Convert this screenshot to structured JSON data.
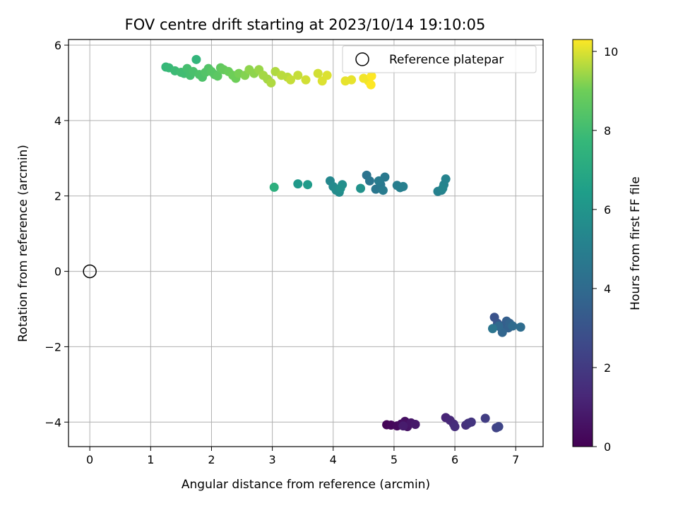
{
  "chart_data": {
    "type": "scatter",
    "title": "FOV centre drift starting at 2023/10/14 19:10:05",
    "xlabel": "Angular distance from reference (arcmin)",
    "ylabel": "Rotation from reference (arcmin)",
    "xlim": [
      -0.35,
      7.45
    ],
    "ylim": [
      -4.65,
      6.15
    ],
    "xticks": [
      0,
      1,
      2,
      3,
      4,
      5,
      6,
      7
    ],
    "yticks": [
      -4,
      -2,
      0,
      2,
      4,
      6
    ],
    "ytick_labels": [
      "−4",
      "−2",
      "0",
      "2",
      "4",
      "6"
    ],
    "grid": true,
    "colormap": "viridis",
    "colorbar": {
      "label": "Hours from first FF file",
      "range": [
        0,
        10.3
      ],
      "ticks": [
        0,
        2,
        4,
        6,
        8,
        10
      ]
    },
    "legend": {
      "position": "top-right",
      "entries": [
        {
          "label": "Reference platepar",
          "marker": "open-circle"
        }
      ]
    },
    "reference_point": {
      "x": 0,
      "y": 0
    },
    "points": [
      {
        "x": 4.88,
        "y": -4.07,
        "c": 0.1
      },
      {
        "x": 4.95,
        "y": -4.08,
        "c": 0.2
      },
      {
        "x": 5.05,
        "y": -4.1,
        "c": 0.3
      },
      {
        "x": 5.12,
        "y": -4.05,
        "c": 0.4
      },
      {
        "x": 5.18,
        "y": -3.98,
        "c": 0.5
      },
      {
        "x": 5.22,
        "y": -4.12,
        "c": 0.6
      },
      {
        "x": 5.28,
        "y": -4.02,
        "c": 0.7
      },
      {
        "x": 5.35,
        "y": -4.06,
        "c": 0.8
      },
      {
        "x": 5.15,
        "y": -4.1,
        "c": 0.9
      },
      {
        "x": 5.85,
        "y": -3.88,
        "c": 1.2
      },
      {
        "x": 5.92,
        "y": -3.95,
        "c": 1.3
      },
      {
        "x": 5.98,
        "y": -4.05,
        "c": 1.4
      },
      {
        "x": 6.0,
        "y": -4.12,
        "c": 1.5
      },
      {
        "x": 6.18,
        "y": -4.08,
        "c": 1.6
      },
      {
        "x": 6.22,
        "y": -4.03,
        "c": 1.7
      },
      {
        "x": 6.27,
        "y": -4.0,
        "c": 1.8
      },
      {
        "x": 6.5,
        "y": -3.9,
        "c": 2.1
      },
      {
        "x": 6.68,
        "y": -4.15,
        "c": 2.3
      },
      {
        "x": 6.72,
        "y": -4.12,
        "c": 2.4
      },
      {
        "x": 6.65,
        "y": -1.22,
        "c": 3.0
      },
      {
        "x": 6.7,
        "y": -1.38,
        "c": 3.1
      },
      {
        "x": 6.75,
        "y": -1.48,
        "c": 3.2
      },
      {
        "x": 6.78,
        "y": -1.55,
        "c": 3.3
      },
      {
        "x": 6.82,
        "y": -1.42,
        "c": 3.4
      },
      {
        "x": 6.85,
        "y": -1.32,
        "c": 3.5
      },
      {
        "x": 6.88,
        "y": -1.5,
        "c": 3.6
      },
      {
        "x": 6.9,
        "y": -1.38,
        "c": 3.7
      },
      {
        "x": 6.78,
        "y": -1.62,
        "c": 3.8
      },
      {
        "x": 6.72,
        "y": -1.45,
        "c": 3.9
      },
      {
        "x": 6.95,
        "y": -1.45,
        "c": 4.0
      },
      {
        "x": 7.08,
        "y": -1.48,
        "c": 4.1
      },
      {
        "x": 6.62,
        "y": -1.52,
        "c": 4.5
      },
      {
        "x": 4.55,
        "y": 2.55,
        "c": 4.4
      },
      {
        "x": 4.6,
        "y": 2.4,
        "c": 4.5
      },
      {
        "x": 4.7,
        "y": 2.18,
        "c": 4.6
      },
      {
        "x": 4.78,
        "y": 2.3,
        "c": 4.6
      },
      {
        "x": 4.85,
        "y": 2.5,
        "c": 4.7
      },
      {
        "x": 4.82,
        "y": 2.15,
        "c": 4.8
      },
      {
        "x": 4.75,
        "y": 2.4,
        "c": 4.8
      },
      {
        "x": 5.05,
        "y": 2.28,
        "c": 4.9
      },
      {
        "x": 5.1,
        "y": 2.22,
        "c": 5.0
      },
      {
        "x": 5.15,
        "y": 2.25,
        "c": 5.0
      },
      {
        "x": 5.72,
        "y": 2.12,
        "c": 5.1
      },
      {
        "x": 5.78,
        "y": 2.15,
        "c": 5.1
      },
      {
        "x": 5.82,
        "y": 2.3,
        "c": 5.2
      },
      {
        "x": 5.85,
        "y": 2.45,
        "c": 5.2
      },
      {
        "x": 5.8,
        "y": 2.2,
        "c": 5.3
      },
      {
        "x": 3.95,
        "y": 2.4,
        "c": 5.4
      },
      {
        "x": 4.0,
        "y": 2.25,
        "c": 5.5
      },
      {
        "x": 4.05,
        "y": 2.15,
        "c": 5.6
      },
      {
        "x": 4.1,
        "y": 2.1,
        "c": 5.6
      },
      {
        "x": 4.15,
        "y": 2.3,
        "c": 5.7
      },
      {
        "x": 4.12,
        "y": 2.2,
        "c": 5.8
      },
      {
        "x": 4.45,
        "y": 2.2,
        "c": 5.9
      },
      {
        "x": 3.42,
        "y": 2.32,
        "c": 6.2
      },
      {
        "x": 3.58,
        "y": 2.3,
        "c": 6.3
      },
      {
        "x": 3.03,
        "y": 2.23,
        "c": 7.3
      },
      {
        "x": 1.75,
        "y": 5.62,
        "c": 7.6
      },
      {
        "x": 1.25,
        "y": 5.42,
        "c": 7.7
      },
      {
        "x": 1.3,
        "y": 5.4,
        "c": 7.8
      },
      {
        "x": 1.4,
        "y": 5.32,
        "c": 7.9
      },
      {
        "x": 1.5,
        "y": 5.28,
        "c": 8.0
      },
      {
        "x": 1.55,
        "y": 5.25,
        "c": 8.0
      },
      {
        "x": 1.6,
        "y": 5.38,
        "c": 8.1
      },
      {
        "x": 1.65,
        "y": 5.2,
        "c": 8.1
      },
      {
        "x": 1.7,
        "y": 5.3,
        "c": 8.2
      },
      {
        "x": 1.8,
        "y": 5.22,
        "c": 8.3
      },
      {
        "x": 1.85,
        "y": 5.15,
        "c": 8.3
      },
      {
        "x": 1.9,
        "y": 5.28,
        "c": 8.4
      },
      {
        "x": 1.95,
        "y": 5.38,
        "c": 8.4
      },
      {
        "x": 2.0,
        "y": 5.3,
        "c": 8.5
      },
      {
        "x": 2.05,
        "y": 5.22,
        "c": 8.5
      },
      {
        "x": 2.1,
        "y": 5.18,
        "c": 8.6
      },
      {
        "x": 2.15,
        "y": 5.4,
        "c": 8.7
      },
      {
        "x": 2.2,
        "y": 5.35,
        "c": 8.8
      },
      {
        "x": 2.28,
        "y": 5.3,
        "c": 8.9
      },
      {
        "x": 2.35,
        "y": 5.2,
        "c": 9.0
      },
      {
        "x": 2.4,
        "y": 5.12,
        "c": 9.0
      },
      {
        "x": 2.45,
        "y": 5.25,
        "c": 9.1
      },
      {
        "x": 2.55,
        "y": 5.2,
        "c": 9.2
      },
      {
        "x": 2.62,
        "y": 5.35,
        "c": 9.3
      },
      {
        "x": 2.7,
        "y": 5.25,
        "c": 9.3
      },
      {
        "x": 2.78,
        "y": 5.35,
        "c": 9.4
      },
      {
        "x": 2.85,
        "y": 5.2,
        "c": 9.5
      },
      {
        "x": 2.92,
        "y": 5.1,
        "c": 9.5
      },
      {
        "x": 2.98,
        "y": 5.0,
        "c": 9.6
      },
      {
        "x": 3.05,
        "y": 5.3,
        "c": 9.6
      },
      {
        "x": 3.15,
        "y": 5.2,
        "c": 9.7
      },
      {
        "x": 3.25,
        "y": 5.15,
        "c": 9.7
      },
      {
        "x": 3.3,
        "y": 5.08,
        "c": 9.8
      },
      {
        "x": 3.42,
        "y": 5.2,
        "c": 9.8
      },
      {
        "x": 3.55,
        "y": 5.08,
        "c": 9.9
      },
      {
        "x": 3.75,
        "y": 5.25,
        "c": 9.9
      },
      {
        "x": 3.82,
        "y": 5.05,
        "c": 10.0
      },
      {
        "x": 3.9,
        "y": 5.2,
        "c": 10.0
      },
      {
        "x": 4.2,
        "y": 5.05,
        "c": 10.1
      },
      {
        "x": 4.3,
        "y": 5.08,
        "c": 10.1
      },
      {
        "x": 4.5,
        "y": 5.12,
        "c": 10.2
      },
      {
        "x": 4.58,
        "y": 5.05,
        "c": 10.2
      },
      {
        "x": 4.62,
        "y": 4.95,
        "c": 10.3
      },
      {
        "x": 4.63,
        "y": 5.18,
        "c": 10.3
      }
    ]
  }
}
